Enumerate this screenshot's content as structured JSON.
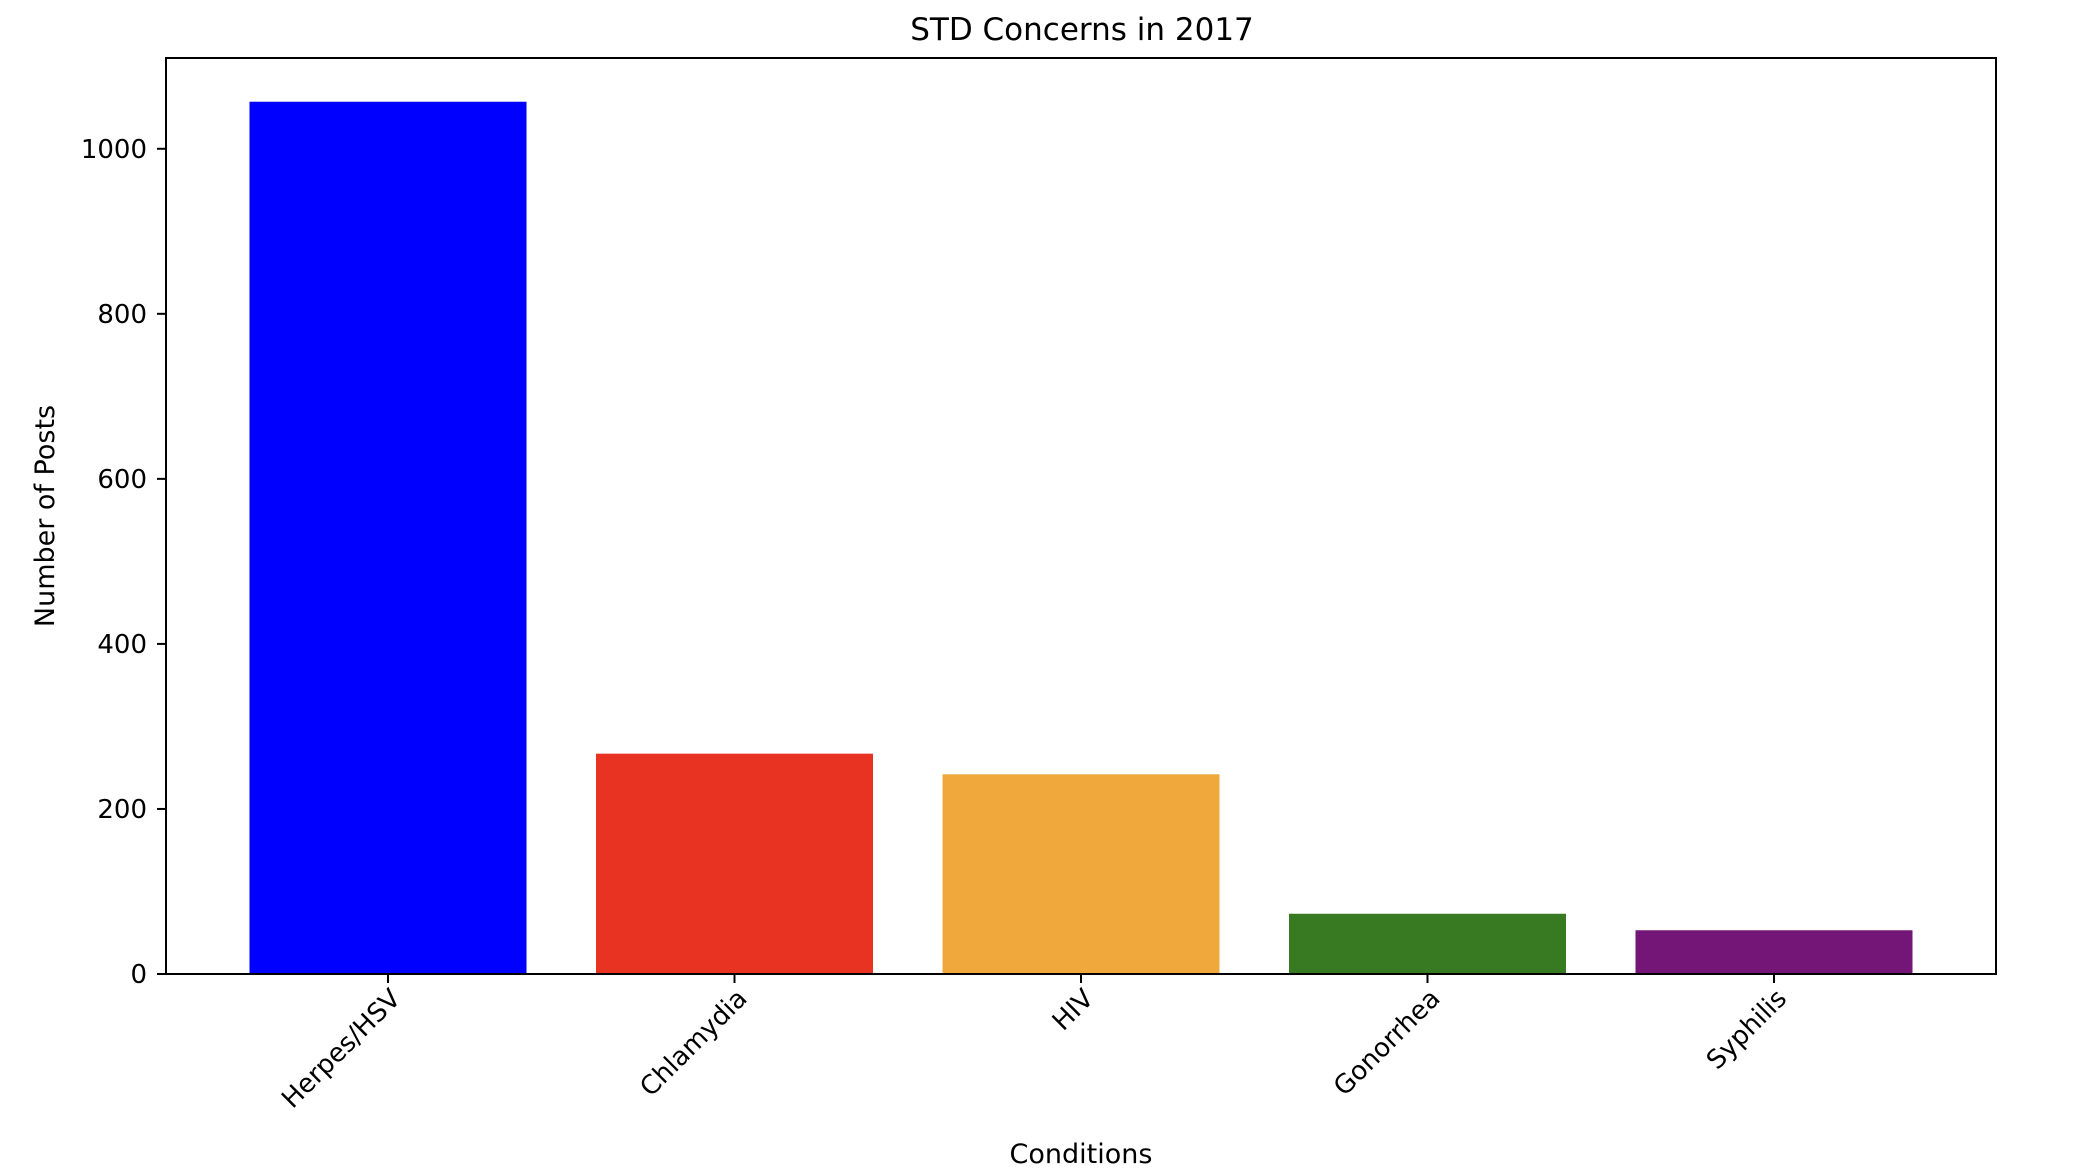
{
  "chart_data": {
    "type": "bar",
    "title": "STD Concerns in 2017",
    "xlabel": "Conditions",
    "ylabel": "Number of Posts",
    "categories": [
      "Herpes/HSV",
      "Chlamydia",
      "HIV",
      "Gonorrhea",
      "Syphilis"
    ],
    "values": [
      1057,
      267,
      242,
      73,
      53
    ],
    "colors": [
      "#0000ff",
      "#e83323",
      "#f0a83d",
      "#377a22",
      "#741678"
    ],
    "ylim": [
      0,
      1110
    ],
    "yticks": [
      0,
      200,
      400,
      600,
      800,
      1000
    ],
    "grid": false,
    "legend": "none",
    "x_tick_rotation": 45
  }
}
